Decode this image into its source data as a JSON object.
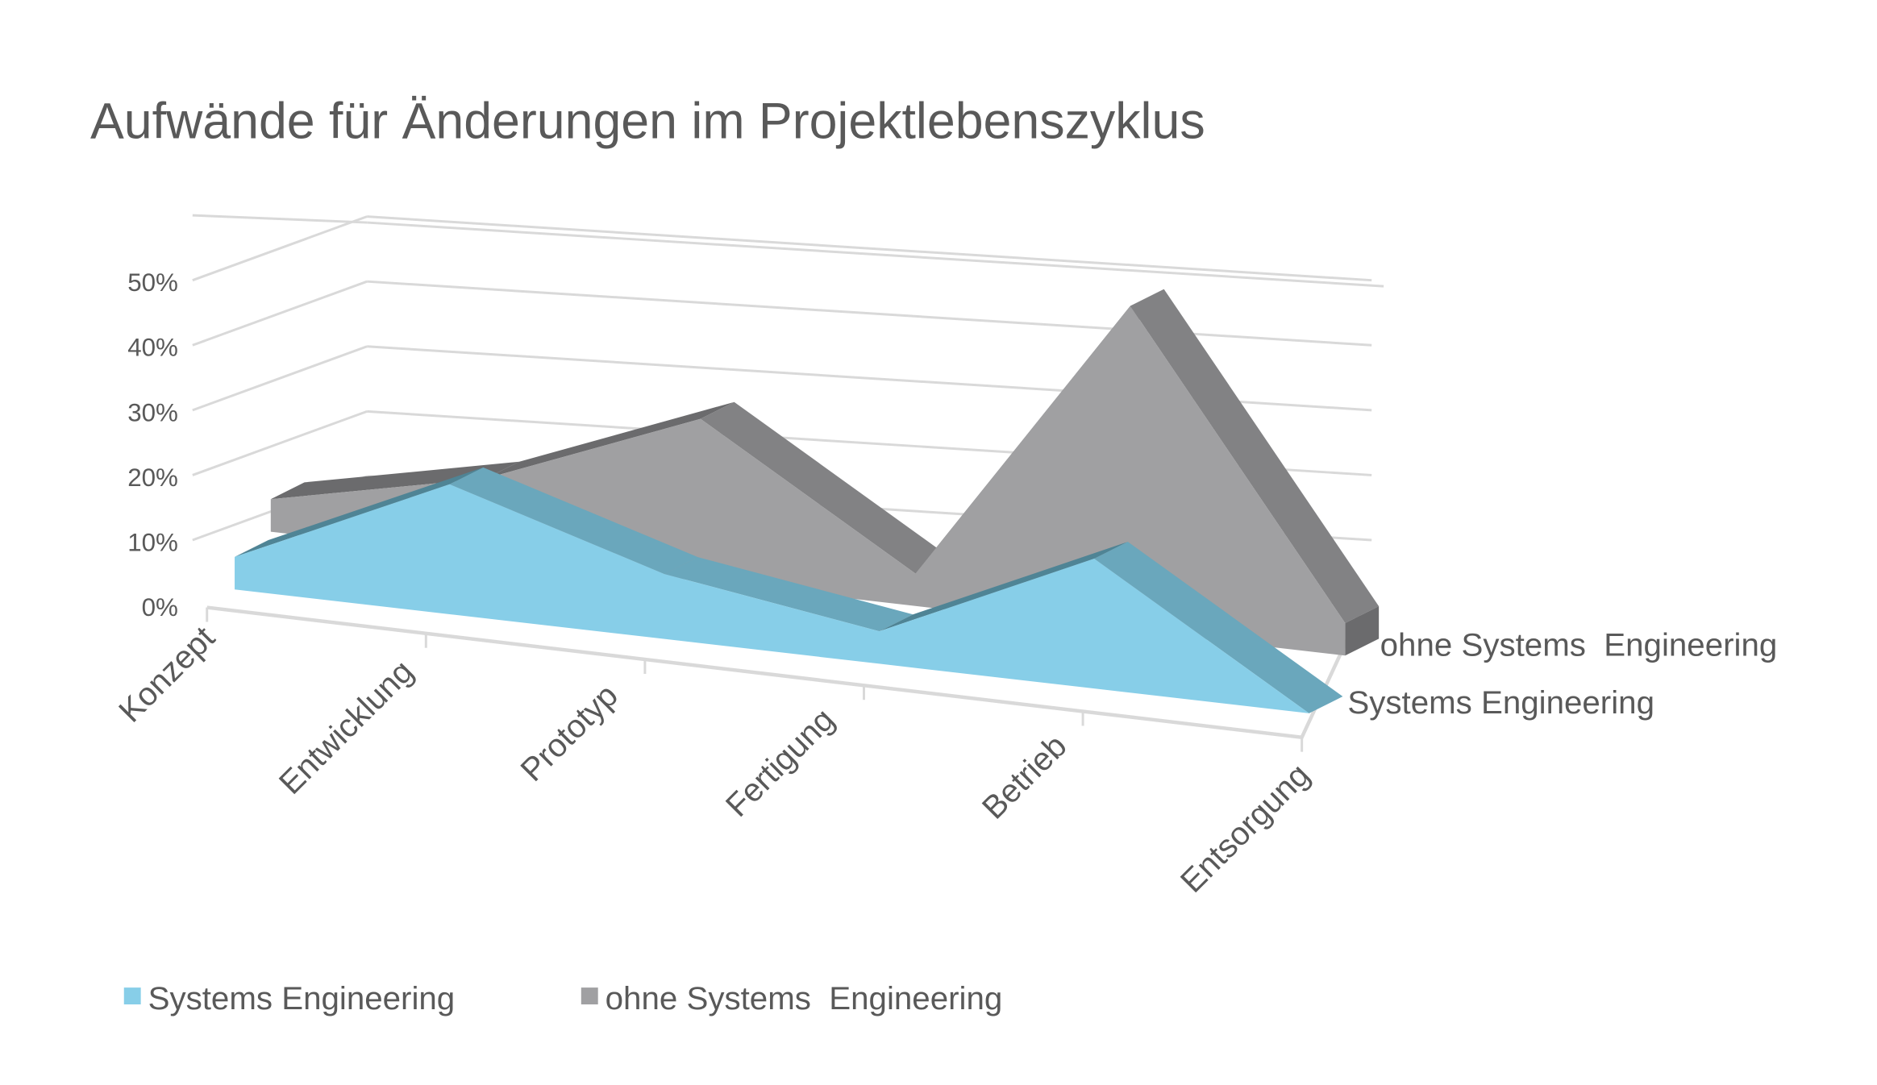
{
  "chart_data": {
    "type": "area",
    "variant": "3d-area",
    "title": "Aufwände für Änderungen im Projektlebenszyklus",
    "categories": [
      "Konzept",
      "Entwicklung",
      "Prototyp",
      "Fertigung",
      "Betrieb",
      "Entsorgung"
    ],
    "series": [
      {
        "name": "Systems Engineering",
        "values": [
          5,
          20,
          10,
          5,
          20,
          0
        ],
        "color": "#87CEE8",
        "top_color": "#6AA7BC",
        "dark_color": "#4F8495"
      },
      {
        "name": "ohne Systems  Engineering",
        "values": [
          5,
          12,
          25,
          5,
          50,
          5
        ],
        "color": "#A0A0A2",
        "top_color": "#828284",
        "dark_color": "#6B6B6D"
      }
    ],
    "y_ticks": [
      "0%",
      "10%",
      "20%",
      "30%",
      "40%",
      "50%"
    ],
    "ylim": [
      0,
      50
    ],
    "grid": true,
    "legend_position": "bottom",
    "gridline_color": "#D9D9D9"
  }
}
